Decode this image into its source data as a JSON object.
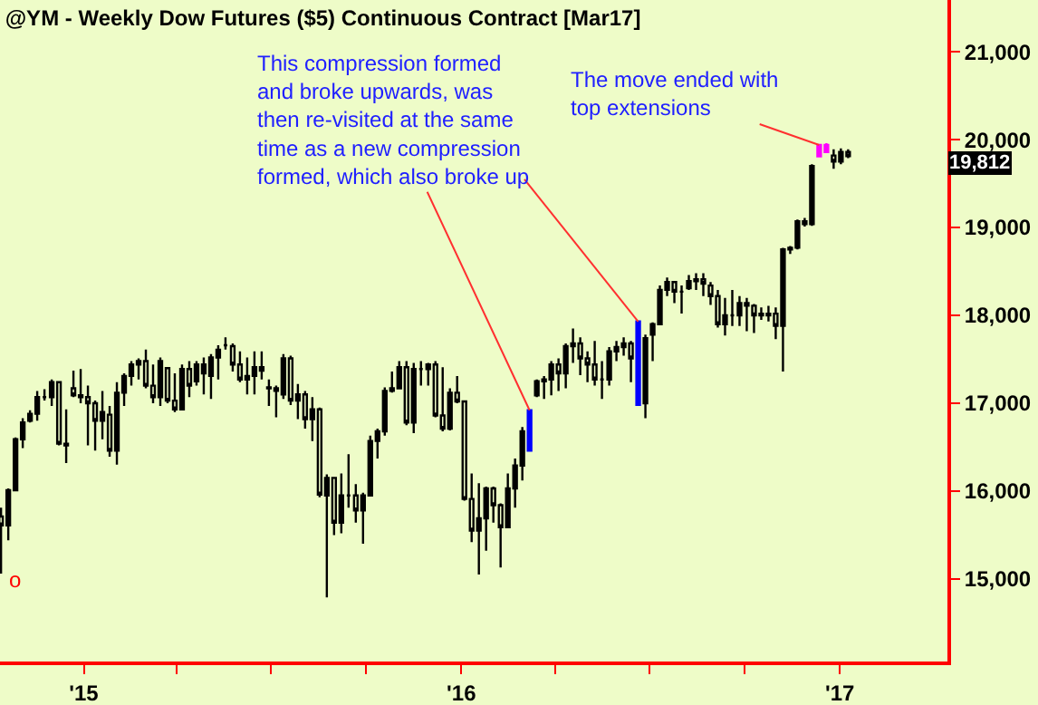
{
  "chart_data": {
    "type": "candlestick",
    "title": "@YM - Weekly Dow Futures ($5) Continuous Contract [Mar17]",
    "x": [
      "2014-10-13",
      "2014-10-20",
      "2014-10-27",
      "2014-11-03",
      "2014-11-10",
      "2014-11-17",
      "2014-11-24",
      "2014-12-01",
      "2014-12-08",
      "2014-12-15",
      "2014-12-22",
      "2014-12-29",
      "2015-01-05",
      "2015-01-12",
      "2015-01-19",
      "2015-01-26",
      "2015-02-02",
      "2015-02-09",
      "2015-02-16",
      "2015-02-23",
      "2015-03-02",
      "2015-03-09",
      "2015-03-16",
      "2015-03-23",
      "2015-03-30",
      "2015-04-06",
      "2015-04-13",
      "2015-04-20",
      "2015-04-27",
      "2015-05-04",
      "2015-05-11",
      "2015-05-18",
      "2015-05-25",
      "2015-06-01",
      "2015-06-08",
      "2015-06-15",
      "2015-06-22",
      "2015-06-29",
      "2015-07-06",
      "2015-07-13",
      "2015-07-20",
      "2015-07-27",
      "2015-08-03",
      "2015-08-10",
      "2015-08-17",
      "2015-08-24",
      "2015-08-31",
      "2015-09-07",
      "2015-09-14",
      "2015-09-21",
      "2015-09-28",
      "2015-10-05",
      "2015-10-12",
      "2015-10-19",
      "2015-10-26",
      "2015-11-02",
      "2015-11-09",
      "2015-11-16",
      "2015-11-23",
      "2015-11-30",
      "2015-12-07",
      "2015-12-14",
      "2015-12-21",
      "2015-12-28",
      "2016-01-04",
      "2016-01-11",
      "2016-01-18",
      "2016-01-25",
      "2016-02-01",
      "2016-02-08",
      "2016-02-15",
      "2016-02-22",
      "2016-02-29",
      "2016-03-07",
      "2016-03-14",
      "2016-03-21",
      "2016-03-28",
      "2016-04-04",
      "2016-04-11",
      "2016-04-18",
      "2016-04-25",
      "2016-05-02",
      "2016-05-09",
      "2016-05-16",
      "2016-05-23",
      "2016-05-30",
      "2016-06-06",
      "2016-06-13",
      "2016-06-20",
      "2016-06-27",
      "2016-07-04",
      "2016-07-11",
      "2016-07-18",
      "2016-07-25",
      "2016-08-01",
      "2016-08-08",
      "2016-08-15",
      "2016-08-22",
      "2016-08-29",
      "2016-09-05",
      "2016-09-12",
      "2016-09-19",
      "2016-09-26",
      "2016-10-03",
      "2016-10-10",
      "2016-10-17",
      "2016-10-24",
      "2016-10-31",
      "2016-11-07",
      "2016-11-14",
      "2016-11-21",
      "2016-11-28",
      "2016-12-05",
      "2016-12-12",
      "2016-12-19",
      "2016-12-26",
      "2017-01-02",
      "2017-01-09"
    ],
    "ohlc": [
      [
        15710,
        15810,
        15060,
        15610
      ],
      [
        15610,
        16030,
        15440,
        16010
      ],
      [
        16010,
        16610,
        16010,
        16590
      ],
      [
        16590,
        16830,
        16490,
        16780
      ],
      [
        16800,
        16920,
        16780,
        16880
      ],
      [
        16880,
        17140,
        16800,
        17070
      ],
      [
        17070,
        17160,
        17030,
        17070
      ],
      [
        17070,
        17270,
        16970,
        17240
      ],
      [
        17240,
        17250,
        16520,
        16540
      ],
      [
        16540,
        16930,
        16320,
        16520
      ],
      [
        17170,
        17370,
        17070,
        17090
      ],
      [
        17090,
        17390,
        17000,
        17070
      ],
      [
        17070,
        17200,
        16520,
        17000
      ],
      [
        17000,
        17030,
        16460,
        16800
      ],
      [
        16800,
        17140,
        16590,
        16900
      ],
      [
        16870,
        16970,
        16390,
        16460
      ],
      [
        16460,
        17240,
        16300,
        17120
      ],
      [
        17120,
        17340,
        16970,
        17310
      ],
      [
        17310,
        17480,
        17200,
        17440
      ],
      [
        17440,
        17510,
        17270,
        17480
      ],
      [
        17480,
        17610,
        17170,
        17200
      ],
      [
        17200,
        17440,
        17000,
        17070
      ],
      [
        17070,
        17520,
        16970,
        17480
      ],
      [
        17400,
        17410,
        17000,
        17030
      ],
      [
        17030,
        17340,
        16900,
        16930
      ],
      [
        16930,
        17440,
        16930,
        17390
      ],
      [
        17390,
        17480,
        17070,
        17200
      ],
      [
        17250,
        17480,
        17200,
        17440
      ],
      [
        17340,
        17520,
        17100,
        17440
      ],
      [
        17310,
        17560,
        17050,
        17520
      ],
      [
        17520,
        17660,
        17270,
        17610
      ],
      [
        17660,
        17750,
        17610,
        17660
      ],
      [
        17650,
        17680,
        17360,
        17440
      ],
      [
        17440,
        17590,
        17240,
        17270
      ],
      [
        17270,
        17520,
        17100,
        17310
      ],
      [
        17310,
        17590,
        17100,
        17410
      ],
      [
        17410,
        17590,
        17270,
        17370
      ],
      [
        17180,
        17270,
        16970,
        17170
      ],
      [
        17170,
        17200,
        16840,
        17140
      ],
      [
        17100,
        17560,
        17050,
        17510
      ],
      [
        17510,
        17540,
        16980,
        17030
      ],
      [
        17030,
        17220,
        16820,
        17100
      ],
      [
        17100,
        17140,
        16710,
        16820
      ],
      [
        16820,
        17070,
        16570,
        16930
      ],
      [
        16930,
        16950,
        15930,
        15960
      ],
      [
        15950,
        16190,
        14790,
        16150
      ],
      [
        16150,
        16150,
        15500,
        15640
      ],
      [
        15640,
        16200,
        15520,
        15950
      ],
      [
        15950,
        16420,
        15810,
        15950
      ],
      [
        15950,
        16080,
        15640,
        15780
      ],
      [
        15780,
        15980,
        15400,
        15950
      ],
      [
        15950,
        16630,
        15950,
        16570
      ],
      [
        16570,
        16710,
        16370,
        16680
      ],
      [
        16680,
        17180,
        16630,
        17140
      ],
      [
        17140,
        17360,
        17120,
        17170
      ],
      [
        17170,
        17480,
        17170,
        17410
      ],
      [
        17410,
        17480,
        16750,
        16780
      ],
      [
        16780,
        17460,
        16660,
        17390
      ],
      [
        17390,
        17480,
        17200,
        17390
      ],
      [
        17390,
        17460,
        17200,
        17440
      ],
      [
        17440,
        17480,
        16840,
        16860
      ],
      [
        16860,
        17410,
        16680,
        16710
      ],
      [
        16710,
        17170,
        16690,
        17120
      ],
      [
        17120,
        17310,
        17000,
        17020
      ],
      [
        17020,
        17030,
        15890,
        15910
      ],
      [
        15910,
        16200,
        15420,
        15550
      ],
      [
        15550,
        16090,
        15050,
        15690
      ],
      [
        15690,
        16050,
        15320,
        16030
      ],
      [
        16030,
        16050,
        15640,
        15840
      ],
      [
        15840,
        15860,
        15130,
        15590
      ],
      [
        15590,
        16200,
        15590,
        16030
      ],
      [
        16030,
        16370,
        15810,
        16290
      ],
      [
        16290,
        16730,
        16120,
        16680
      ],
      [
        16460,
        16920,
        16460,
        16920
      ],
      [
        17090,
        17270,
        17070,
        17250
      ],
      [
        17250,
        17310,
        17050,
        17270
      ],
      [
        17270,
        17480,
        17090,
        17440
      ],
      [
        17440,
        17510,
        17140,
        17340
      ],
      [
        17340,
        17680,
        17170,
        17650
      ],
      [
        17650,
        17850,
        17460,
        17680
      ],
      [
        17680,
        17750,
        17320,
        17510
      ],
      [
        17510,
        17590,
        17240,
        17440
      ],
      [
        17440,
        17710,
        17200,
        17270
      ],
      [
        17270,
        17480,
        17050,
        17270
      ],
      [
        17270,
        17640,
        17200,
        17590
      ],
      [
        17590,
        17710,
        17480,
        17640
      ],
      [
        17640,
        17750,
        17540,
        17680
      ],
      [
        17680,
        17710,
        17240,
        17510
      ],
      [
        16980,
        17930,
        16980,
        17930
      ],
      [
        17000,
        17780,
        16830,
        17740
      ],
      [
        17780,
        17920,
        17480,
        17900
      ],
      [
        17900,
        18340,
        17900,
        18290
      ],
      [
        18290,
        18430,
        18220,
        18380
      ],
      [
        18380,
        18380,
        18140,
        18270
      ],
      [
        18270,
        18340,
        18020,
        18270
      ],
      [
        18310,
        18460,
        18290,
        18390
      ],
      [
        18390,
        18480,
        18290,
        18410
      ],
      [
        18410,
        18480,
        18220,
        18360
      ],
      [
        18340,
        18380,
        18120,
        18220
      ],
      [
        18220,
        18290,
        17860,
        17900
      ],
      [
        17900,
        18200,
        17770,
        18000
      ],
      [
        18000,
        18290,
        17880,
        18000
      ],
      [
        18000,
        18220,
        17880,
        18140
      ],
      [
        18140,
        18200,
        17820,
        18110
      ],
      [
        18110,
        18130,
        17800,
        18000
      ],
      [
        18000,
        18090,
        17950,
        18020
      ],
      [
        18000,
        18110,
        17930,
        18020
      ],
      [
        18020,
        18090,
        17730,
        17880
      ],
      [
        17880,
        18770,
        17360,
        18750
      ],
      [
        18750,
        18790,
        18700,
        18770
      ],
      [
        18770,
        19090,
        18750,
        19070
      ],
      [
        19070,
        19110,
        19010,
        19040
      ],
      [
        19040,
        19720,
        19020,
        19700
      ],
      [
        19810,
        19940,
        19810,
        19940
      ],
      [
        19860,
        19960,
        19860,
        19940
      ],
      [
        19820,
        19890,
        19670,
        19750
      ],
      [
        19750,
        19900,
        19720,
        19860
      ],
      [
        19860,
        19890,
        19790,
        19812
      ]
    ],
    "colors": [
      "#000000",
      "#000000",
      "#000000",
      "#000000",
      "#000000",
      "#000000",
      "#000000",
      "#000000",
      "#000000",
      "#000000",
      "#000000",
      "#000000",
      "#000000",
      "#000000",
      "#000000",
      "#000000",
      "#000000",
      "#000000",
      "#000000",
      "#000000",
      "#000000",
      "#000000",
      "#000000",
      "#000000",
      "#000000",
      "#000000",
      "#000000",
      "#000000",
      "#000000",
      "#000000",
      "#000000",
      "#000000",
      "#000000",
      "#000000",
      "#000000",
      "#000000",
      "#000000",
      "#000000",
      "#000000",
      "#000000",
      "#000000",
      "#000000",
      "#000000",
      "#000000",
      "#000000",
      "#000000",
      "#000000",
      "#000000",
      "#000000",
      "#000000",
      "#000000",
      "#000000",
      "#000000",
      "#000000",
      "#000000",
      "#000000",
      "#000000",
      "#000000",
      "#000000",
      "#000000",
      "#000000",
      "#000000",
      "#000000",
      "#000000",
      "#000000",
      "#000000",
      "#000000",
      "#000000",
      "#000000",
      "#000000",
      "#000000",
      "#000000",
      "#000000",
      "#0000ff",
      "#000000",
      "#000000",
      "#000000",
      "#000000",
      "#000000",
      "#000000",
      "#000000",
      "#000000",
      "#000000",
      "#000000",
      "#000000",
      "#000000",
      "#000000",
      "#000000",
      "#0000ff",
      "#000000",
      "#000000",
      "#000000",
      "#000000",
      "#000000",
      "#000000",
      "#000000",
      "#000000",
      "#000000",
      "#000000",
      "#000000",
      "#000000",
      "#000000",
      "#000000",
      "#000000",
      "#000000",
      "#000000",
      "#000000",
      "#000000",
      "#000000",
      "#000000",
      "#000000",
      "#000000",
      "#000000",
      "#ff00ff",
      "#ff00ff",
      "#000000",
      "#000000",
      "#000000"
    ],
    "xlim": [
      "2014-10-12",
      "2017-04-15"
    ],
    "xticks": [
      {
        "value": "2015-01-01",
        "label": "'15"
      },
      {
        "value": "2015-04-01",
        "label": null
      },
      {
        "value": "2015-07-01",
        "label": null
      },
      {
        "value": "2015-10-01",
        "label": null
      },
      {
        "value": "2016-01-01",
        "label": "'16"
      },
      {
        "value": "2016-04-01",
        "label": null
      },
      {
        "value": "2016-07-01",
        "label": null
      },
      {
        "value": "2016-10-01",
        "label": null
      },
      {
        "value": "2017-01-01",
        "label": "'17"
      }
    ],
    "ylim": [
      14060,
      21590
    ],
    "yticks": [
      {
        "value": 15000,
        "label": "15,000"
      },
      {
        "value": 16000,
        "label": "16,000"
      },
      {
        "value": 17000,
        "label": "17,000"
      },
      {
        "value": 18000,
        "label": "18,000"
      },
      {
        "value": 19000,
        "label": "19,000"
      },
      {
        "value": 20000,
        "label": "20,000"
      },
      {
        "value": 21000,
        "label": "21,000"
      }
    ],
    "annotations": [
      {
        "text": "This compression formed\nand broke upwards, was\nthen re-visited at the same\ntime as a new compression\nformed, which also broke up",
        "x": "2016-03-07",
        "y": 16920
      },
      {
        "text": "The move ended with\ntop extensions",
        "x": "2016-12-12",
        "y": 19940
      },
      "o",
      "19,812"
    ]
  }
}
